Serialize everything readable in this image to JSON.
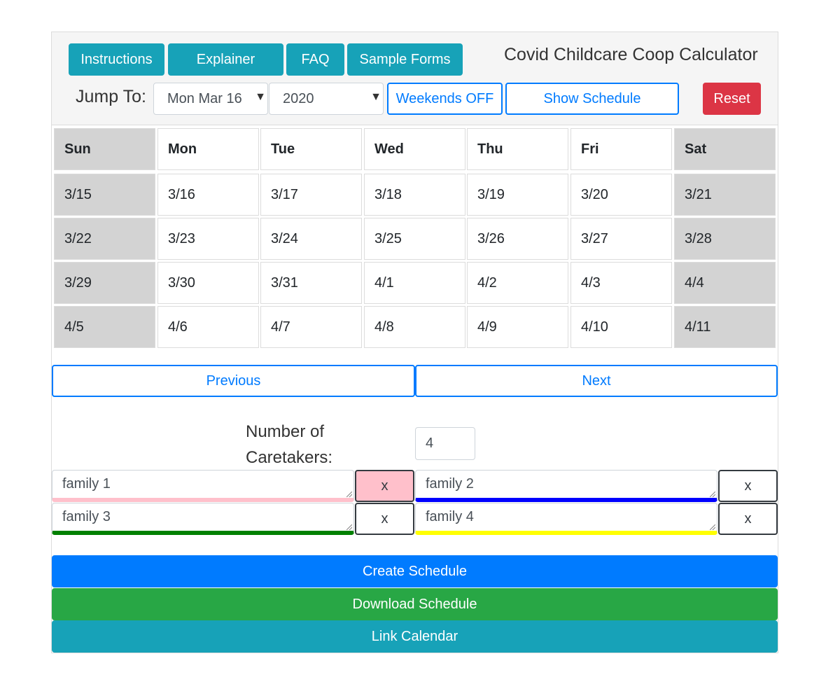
{
  "header": {
    "buttons": {
      "instructions": "Instructions",
      "explainer": "Explainer",
      "faq": "FAQ",
      "sample_forms": "Sample Forms"
    },
    "title": "Covid Childcare Coop Calculator",
    "jump_to_label": "Jump To:",
    "date_select": "Mon Mar 16",
    "year_select": "2020",
    "weekends_button": "Weekends OFF",
    "show_schedule_button": "Show Schedule",
    "reset_button": "Reset"
  },
  "calendar": {
    "days": [
      "Sun",
      "Mon",
      "Tue",
      "Wed",
      "Thu",
      "Fri",
      "Sat"
    ],
    "weeks": [
      [
        "3/15",
        "3/16",
        "3/17",
        "3/18",
        "3/19",
        "3/20",
        "3/21"
      ],
      [
        "3/22",
        "3/23",
        "3/24",
        "3/25",
        "3/26",
        "3/27",
        "3/28"
      ],
      [
        "3/29",
        "3/30",
        "3/31",
        "4/1",
        "4/2",
        "4/3",
        "4/4"
      ],
      [
        "4/5",
        "4/6",
        "4/7",
        "4/8",
        "4/9",
        "4/10",
        "4/11"
      ]
    ]
  },
  "navigation": {
    "previous": "Previous",
    "next": "Next"
  },
  "caretakers": {
    "label_line1": "Number of",
    "label_line2": "Caretakers:",
    "count": "4"
  },
  "families": [
    {
      "name": "family 1",
      "color": "#ffc0cb",
      "remove_label": "x"
    },
    {
      "name": "family 2",
      "color": "#0000ff",
      "remove_label": "x"
    },
    {
      "name": "family 3",
      "color": "#008000",
      "remove_label": "x"
    },
    {
      "name": "family 4",
      "color": "#ffff00",
      "remove_label": "x"
    }
  ],
  "actions": {
    "create": "Create Schedule",
    "download": "Download Schedule",
    "link": "Link Calendar"
  },
  "colors": {
    "info": "#17a2b8",
    "primary": "#007bff",
    "success": "#28a745",
    "danger": "#dc3545",
    "weekend": "#d3d3d3"
  }
}
